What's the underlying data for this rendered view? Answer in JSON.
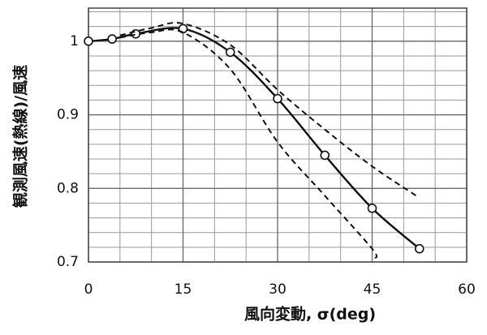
{
  "chart_data": {
    "type": "line",
    "x_label": "風向変動, σ(deg)",
    "y_label": "観測風速(熱線)/風速",
    "xlim": [
      0,
      60
    ],
    "xticks": [
      0,
      15,
      30,
      45,
      60
    ],
    "ylim": [
      0.7,
      1.045
    ],
    "yticks": [
      {
        "value": 0.7,
        "label": "0.7"
      },
      {
        "value": 0.8,
        "label": "0.8"
      },
      {
        "value": 0.9,
        "label": "0.9"
      },
      1
    ],
    "grid": true,
    "grid_x_step": 5,
    "grid_y_step": 0.02,
    "series": [
      {
        "color": "#111111",
        "style": "solid",
        "markers": true,
        "x": [
          0,
          3.75,
          7.5,
          15,
          22.5,
          30,
          37.5,
          45,
          52.5
        ],
        "values": [
          1.0,
          1.003,
          1.01,
          1.017,
          0.985,
          0.922,
          0.845,
          0.773,
          0.718
        ]
      },
      {
        "color": "#111111",
        "style": "dashed",
        "markers": false,
        "x": [
          5,
          10,
          15,
          22.5,
          30,
          37.5,
          45,
          52
        ],
        "values": [
          1.008,
          1.018,
          1.024,
          0.995,
          0.934,
          0.88,
          0.83,
          0.79
        ]
      },
      {
        "color": "#111111",
        "style": "dashed",
        "markers": false,
        "x": [
          5,
          10,
          15,
          22.5,
          30,
          37.5,
          45,
          45.5
        ],
        "values": [
          1.005,
          1.012,
          1.012,
          0.962,
          0.863,
          0.79,
          0.718,
          0.705
        ]
      }
    ]
  }
}
